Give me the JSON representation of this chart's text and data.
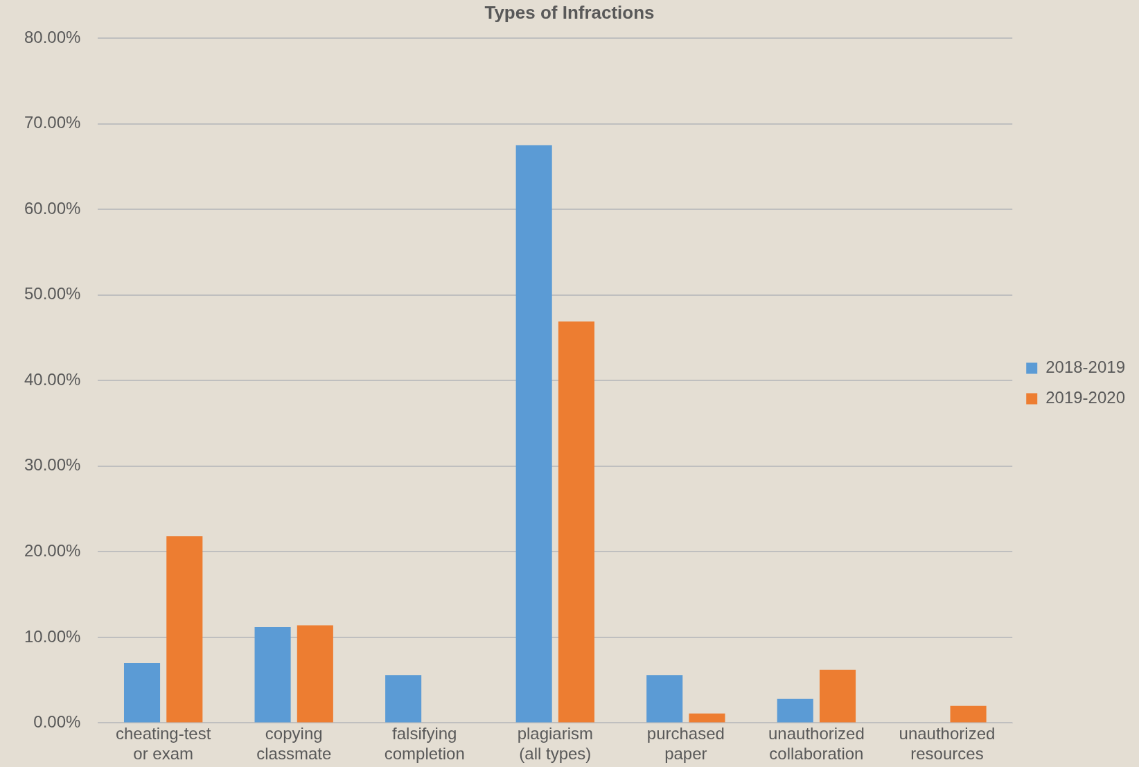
{
  "chart_data": {
    "type": "bar",
    "title": "Types of Infractions",
    "categories": [
      "cheating-test or exam",
      "copying classmate",
      "falsifying completion",
      "plagiarism (all types)",
      "purchased paper",
      "unauthorized collaboration",
      "unauthorized resources"
    ],
    "series": [
      {
        "name": "2018-2019",
        "color": "#5b9bd5",
        "values": [
          7.0,
          11.2,
          5.6,
          67.5,
          5.6,
          2.8,
          0
        ]
      },
      {
        "name": "2019-2020",
        "color": "#ed7d31",
        "values": [
          21.8,
          11.4,
          0,
          46.9,
          1.1,
          6.2,
          2.0
        ]
      }
    ],
    "ylim": [
      0,
      80
    ],
    "yticks": [
      {
        "value": 0,
        "label": "0.00%"
      },
      {
        "value": 10,
        "label": "10.00%"
      },
      {
        "value": 20,
        "label": "20.00%"
      },
      {
        "value": 30,
        "label": "30.00%"
      },
      {
        "value": 40,
        "label": "40.00%"
      },
      {
        "value": 50,
        "label": "50.00%"
      },
      {
        "value": 60,
        "label": "60.00%"
      },
      {
        "value": 70,
        "label": "70.00%"
      },
      {
        "value": 80,
        "label": "80.00%"
      }
    ],
    "grid": "y",
    "legend": "right"
  }
}
